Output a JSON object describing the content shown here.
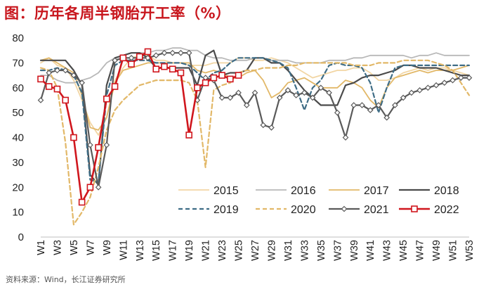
{
  "title": "图：历年各周半钢胎开工率（%）",
  "source": "资料来源：Wind，长江证券研究所",
  "colors": {
    "title": "#c8161d",
    "2015": "#f2d6a4",
    "2016": "#b8b8b8",
    "2017": "#e2b868",
    "2018": "#4b4b4b",
    "2019": "#3f6d86",
    "2020": "#e2b868",
    "2021": "#5a5a5a",
    "2022": "#d0161d"
  },
  "chart_data": {
    "type": "line",
    "title": "历年各周半钢胎开工率（%）",
    "xlabel": "",
    "ylabel": "",
    "ylim": [
      0,
      80
    ],
    "yticks": [
      0,
      10,
      20,
      30,
      40,
      50,
      60,
      70,
      80
    ],
    "xlim": [
      1,
      53
    ],
    "xticks": [
      "W1",
      "W3",
      "W5",
      "W7",
      "W9",
      "W11",
      "W13",
      "W15",
      "W17",
      "W19",
      "W21",
      "W23",
      "W25",
      "W27",
      "W29",
      "W31",
      "W33",
      "W35",
      "W37",
      "W39",
      "W41",
      "W43",
      "W45",
      "W47",
      "W49",
      "W51",
      "W53"
    ],
    "legend_position": "lower-right",
    "series": [
      {
        "name": "2015",
        "style": "solid",
        "values": [
          70,
          72,
          69,
          68,
          63,
          55,
          46,
          41,
          48,
          63,
          68,
          72,
          73,
          73,
          71,
          71,
          70,
          70,
          69,
          69,
          69,
          70,
          70,
          70,
          72,
          72,
          71,
          71,
          72,
          71,
          70,
          68,
          66,
          64,
          65,
          66,
          67,
          67,
          68,
          68,
          66,
          63,
          63,
          64,
          66,
          67,
          68,
          67,
          68,
          68,
          67,
          66,
          65
        ]
      },
      {
        "name": "2016",
        "style": "solid",
        "values": [
          65,
          65,
          63,
          62,
          62,
          63,
          64,
          66,
          70,
          72,
          73,
          74,
          74,
          74,
          75,
          75,
          76,
          76,
          75,
          75,
          73,
          72,
          72,
          71,
          71,
          71,
          72,
          72,
          71,
          71,
          71,
          70,
          70,
          70,
          70,
          71,
          71,
          71,
          72,
          72,
          73,
          73,
          73,
          73,
          73,
          72,
          73,
          73,
          74,
          73,
          73,
          73,
          73
        ]
      },
      {
        "name": "2017",
        "style": "solid",
        "values": [
          71,
          72,
          70,
          68,
          66,
          57,
          44,
          43,
          48,
          62,
          67,
          68,
          69,
          70,
          70,
          70,
          70,
          70,
          70,
          67,
          66,
          67,
          66,
          64,
          64,
          66,
          67,
          63,
          56,
          58,
          62,
          63,
          64,
          62,
          60,
          60,
          60,
          63,
          62,
          60,
          55,
          52,
          60,
          64,
          65,
          66,
          67,
          66,
          67,
          67,
          67,
          68,
          69
        ]
      },
      {
        "name": "2018",
        "style": "solid",
        "values": [
          71,
          71,
          71,
          71,
          67,
          61,
          25,
          21,
          61,
          72,
          73,
          74,
          74,
          72,
          68,
          68,
          68,
          68,
          68,
          61,
          73,
          75,
          65,
          66,
          66,
          67,
          72,
          72,
          70,
          70,
          67,
          63,
          59,
          56,
          53,
          53,
          53,
          61,
          62,
          64,
          65,
          65,
          66,
          67,
          69,
          69,
          68,
          68,
          68,
          67,
          66,
          65,
          65
        ]
      },
      {
        "name": "2019",
        "style": "dashed",
        "values": [
          67,
          67,
          68,
          67,
          65,
          58,
          23,
          22,
          57,
          69,
          71,
          71,
          71,
          71,
          70,
          70,
          70,
          70,
          69,
          66,
          63,
          66,
          67,
          70,
          72,
          72,
          72,
          72,
          71,
          70,
          68,
          60,
          51,
          60,
          63,
          69,
          70,
          69,
          69,
          68,
          62,
          50,
          60,
          68,
          69,
          69,
          69,
          69,
          69,
          69,
          69,
          69,
          69
        ]
      },
      {
        "name": "2020",
        "style": "dashed",
        "values": [
          68,
          67,
          60,
          38,
          5,
          10,
          16,
          28,
          43,
          51,
          55,
          58,
          61,
          62,
          63,
          63,
          63,
          63,
          62,
          55,
          28,
          59,
          61,
          62,
          66,
          67,
          67,
          68,
          68,
          68,
          69,
          69,
          70,
          70,
          70,
          70,
          70,
          70,
          69,
          69,
          69,
          70,
          70,
          70,
          71,
          71,
          71,
          71,
          70,
          69,
          67,
          62,
          57
        ]
      },
      {
        "name": "2021",
        "style": "solid-marker",
        "values": [
          55,
          66,
          67,
          67,
          65,
          62,
          37,
          20,
          37,
          71,
          72,
          72,
          72,
          72,
          73,
          74,
          74,
          74,
          74,
          55,
          64,
          63,
          56,
          56,
          58,
          53,
          58,
          45,
          44,
          56,
          59,
          57,
          58,
          56,
          60,
          58,
          50,
          40,
          53,
          53,
          51,
          53,
          48,
          53,
          56,
          58,
          59,
          60,
          61,
          62,
          63,
          64,
          64
        ]
      },
      {
        "name": "2022",
        "style": "solid-square",
        "values": [
          63.5,
          60.5,
          59.5,
          55,
          40,
          14,
          20,
          36,
          55.5,
          60.5,
          72,
          69.5,
          72.5,
          74.5,
          67.5,
          68.5,
          67.5,
          66,
          41,
          60,
          62,
          64,
          65,
          63.5,
          65
        ]
      }
    ]
  },
  "legend": [
    {
      "label": "2015",
      "key": "2015",
      "style": "solid"
    },
    {
      "label": "2016",
      "key": "2016",
      "style": "solid"
    },
    {
      "label": "2017",
      "key": "2017",
      "style": "solid"
    },
    {
      "label": "2018",
      "key": "2018",
      "style": "solid"
    },
    {
      "label": "2019",
      "key": "2019",
      "style": "dashed"
    },
    {
      "label": "2020",
      "key": "2020",
      "style": "dashed"
    },
    {
      "label": "2021",
      "key": "2021",
      "style": "solid-marker"
    },
    {
      "label": "2022",
      "key": "2022",
      "style": "solid-square"
    }
  ]
}
